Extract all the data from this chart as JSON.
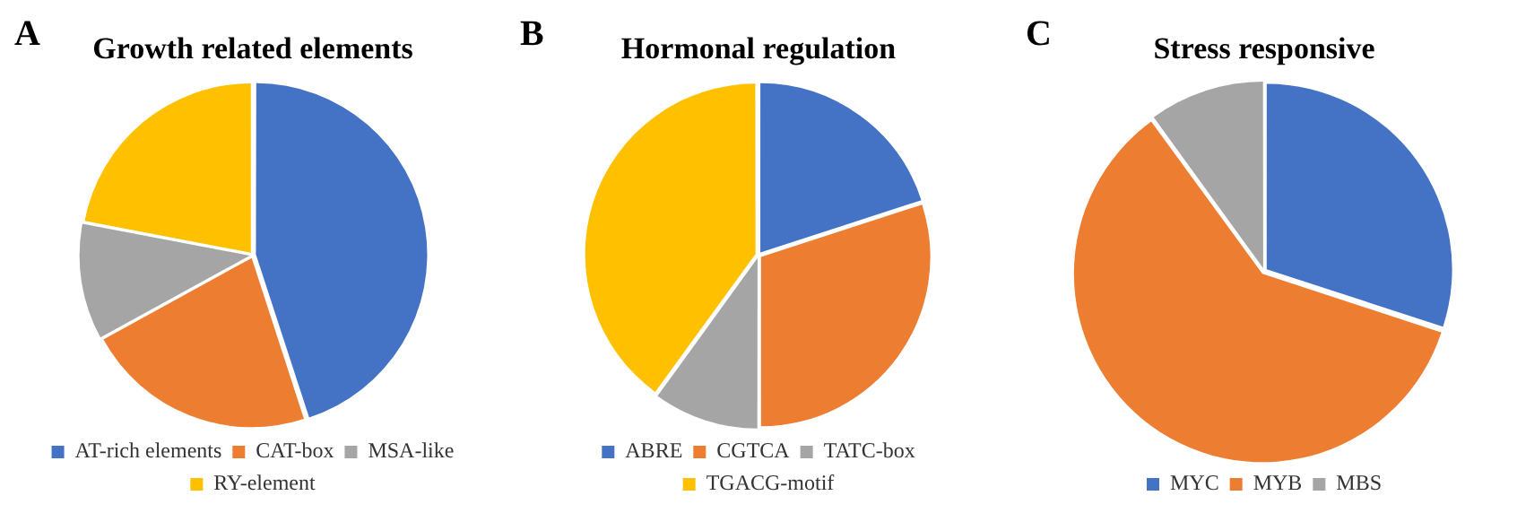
{
  "chart_data": [
    {
      "type": "pie",
      "title": "Growth related elements",
      "annotations": [
        "A"
      ],
      "categories": [
        "AT-rich elements",
        "CAT-box",
        "MSA-like",
        "RY-element"
      ],
      "values": [
        45,
        22,
        11,
        22
      ],
      "colors": [
        "#4472c4",
        "#ed7d31",
        "#a5a5a5",
        "#ffc000"
      ],
      "legend": "bottom"
    },
    {
      "type": "pie",
      "title": "Hormonal regulation",
      "annotations": [
        "B"
      ],
      "categories": [
        "ABRE",
        "CGTCA",
        "TATC-box",
        "TGACG-motif"
      ],
      "values": [
        20,
        30,
        10,
        40
      ],
      "colors": [
        "#4472c4",
        "#ed7d31",
        "#a5a5a5",
        "#ffc000"
      ],
      "legend": "bottom"
    },
    {
      "type": "pie",
      "title": "Stress responsive",
      "annotations": [
        "C"
      ],
      "categories": [
        "MYC",
        "MYB",
        "MBS"
      ],
      "values": [
        30,
        60,
        10
      ],
      "colors": [
        "#4472c4",
        "#ed7d31",
        "#a5a5a5"
      ],
      "legend": "bottom"
    }
  ]
}
